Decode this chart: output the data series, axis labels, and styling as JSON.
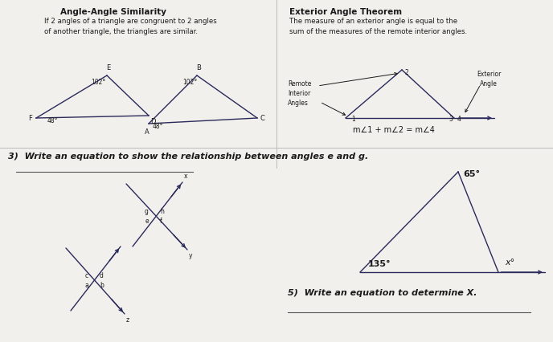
{
  "paper_color": "#f2f0ed",
  "line_color": "#2a2a5a",
  "text_color": "#1a1a1a",
  "title_aa": "Angle-Angle Similarity",
  "desc_aa": "If 2 angles of a triangle are congruent to 2 angles\nof another triangle, the triangles are similar.",
  "title_ext": "Exterior Angle Theorem",
  "desc_ext": "The measure of an exterior angle is equal to the\nsum of the measures of the remote interior angles.",
  "q3_text": "3)  Write an equation to show the relationship between angles e and g.",
  "q5_text": "5)  Write an equation to determine X.",
  "ext_eq": "m∠1 + m∠2 = m∠4"
}
